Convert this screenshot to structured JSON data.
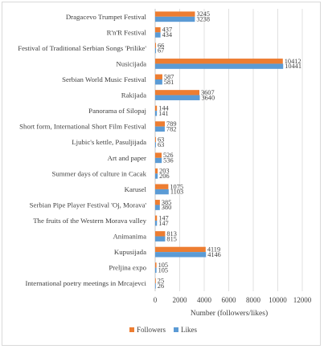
{
  "chart_data": {
    "type": "bar",
    "orientation": "horizontal",
    "categories": [
      "Dragacevo Trumpet Festival",
      "R'n'R Festival",
      "Festival of Traditional Serbian Songs 'Prilike'",
      "Nusicijada",
      "Serbian World Music Festival",
      "Rakijada",
      "Panorama of Silopaj",
      "Short form, International Short Film Festival",
      "Ljubic's kettle, Pasuljijada",
      "Art and paper",
      "Summer days of culture in Cacak",
      "Karusel",
      "Serbian Pipe Player Festival 'Oj, Morava'",
      "The fruits of the Western Morava valley",
      "Animanima",
      "Kupusijada",
      "Preljina expo",
      "International poetry meetings in Mrcajevci"
    ],
    "series": [
      {
        "name": "Followers",
        "color": "#ed7d31",
        "values": [
          3245,
          437,
          66,
          10412,
          587,
          3607,
          144,
          789,
          63,
          526,
          203,
          1075,
          385,
          147,
          813,
          4119,
          105,
          25
        ]
      },
      {
        "name": "Likes",
        "color": "#5b9bd5",
        "values": [
          3238,
          434,
          67,
          10441,
          581,
          3640,
          141,
          782,
          63,
          536,
          206,
          1103,
          380,
          147,
          815,
          4146,
          105,
          26
        ]
      }
    ],
    "xlabel": "Number (followers/likes)",
    "ylabel": "",
    "xlim": [
      0,
      12000
    ],
    "xticks": [
      "0",
      "2000",
      "4000",
      "6000",
      "8000",
      "10000",
      "12000"
    ],
    "grid": true,
    "legend": "bottom"
  }
}
